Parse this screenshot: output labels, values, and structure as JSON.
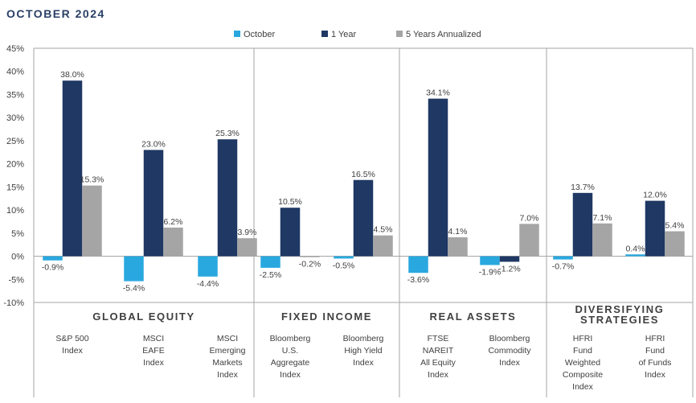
{
  "page": {
    "title": "OCTOBER 2024"
  },
  "colors": {
    "october": "#29a8e0",
    "one_year": "#1f3864",
    "five_year": "#a5a5a5",
    "axis": "#a6a6a6"
  },
  "chart_data": {
    "type": "bar",
    "title": "",
    "xlabel": "",
    "ylabel": "",
    "ylim": [
      -10,
      45
    ],
    "y_ticks": [
      "-10%",
      "-5%",
      "0%",
      "5%",
      "10%",
      "15%",
      "20%",
      "25%",
      "30%",
      "35%",
      "40%",
      "45%"
    ],
    "grid": false,
    "legend_position": "top-center",
    "groups": [
      {
        "label_lines": [
          "GLOBAL EQUITY"
        ],
        "size": 3
      },
      {
        "label_lines": [
          "FIXED INCOME"
        ],
        "size": 2
      },
      {
        "label_lines": [
          "REAL ASSETS"
        ],
        "size": 2
      },
      {
        "label_lines": [
          "DIVERSIFYING",
          "STRATEGIES"
        ],
        "size": 2
      }
    ],
    "categories": [
      [
        "S&P 500",
        "Index"
      ],
      [
        "MSCI",
        "EAFE",
        "Index"
      ],
      [
        "MSCI",
        "Emerging",
        "Markets",
        "Index"
      ],
      [
        "Bloomberg",
        "U.S.",
        "Aggregate",
        "Index"
      ],
      [
        "Bloomberg",
        "High Yield",
        "Index"
      ],
      [
        "FTSE",
        "NAREIT",
        "All Equity",
        "Index"
      ],
      [
        "Bloomberg",
        "Commodity",
        "Index"
      ],
      [
        "HFRI",
        "Fund",
        "Weighted",
        "Composite",
        "Index"
      ],
      [
        "HFRI",
        "Fund",
        "of Funds",
        "Index"
      ]
    ],
    "series": [
      {
        "name": "October",
        "color": "#29a8e0",
        "values": [
          -0.9,
          -5.4,
          -4.4,
          -2.5,
          -0.5,
          -3.6,
          -1.9,
          -0.7,
          0.4
        ],
        "labels": [
          "-0.9%",
          "-5.4%",
          "-4.4%",
          "-2.5%",
          "-0.5%",
          "-3.6%",
          "-1.9%",
          "-0.7%",
          "0.4%"
        ]
      },
      {
        "name": "1 Year",
        "color": "#1f3864",
        "values": [
          38.0,
          23.0,
          25.3,
          10.5,
          16.5,
          34.1,
          -1.2,
          13.7,
          12.0
        ],
        "labels": [
          "38.0%",
          "23.0%",
          "25.3%",
          "10.5%",
          "16.5%",
          "34.1%",
          "-1.2%",
          "13.7%",
          "12.0%"
        ]
      },
      {
        "name": "5 Years Annualized",
        "color": "#a5a5a5",
        "values": [
          15.3,
          6.2,
          3.9,
          -0.2,
          4.5,
          4.1,
          7.0,
          7.1,
          5.4
        ],
        "labels": [
          "15.3%",
          "6.2%",
          "3.9%",
          "-0.2%",
          "4.5%",
          "4.1%",
          "7.0%",
          "7.1%",
          "5.4%"
        ]
      }
    ]
  }
}
